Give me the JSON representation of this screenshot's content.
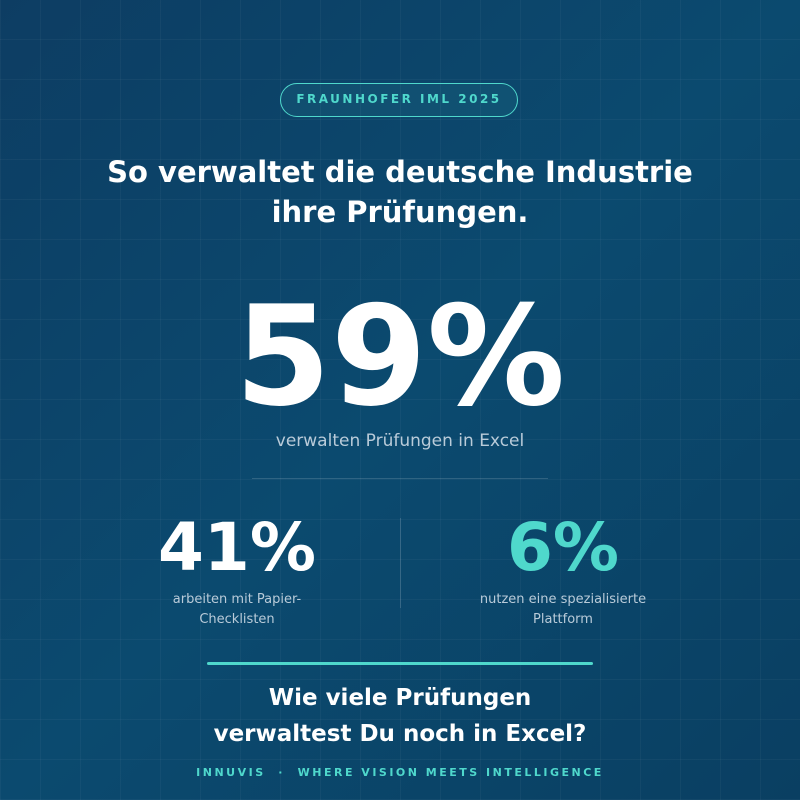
{
  "badge": "FRAUNHOFER IML 2025",
  "headline": [
    "So verwaltet die deutsche Industrie",
    "ihre Prüfungen."
  ],
  "main_stat": {
    "value": "59%",
    "caption": "verwalten Prüfungen in Excel"
  },
  "stats": [
    {
      "value": "41%",
      "caption": [
        "arbeiten mit Papier-",
        "Checklisten"
      ]
    },
    {
      "value": "6%",
      "caption": [
        "nutzen eine spezialisierte",
        "Plattform"
      ]
    }
  ],
  "question": [
    "Wie viele Prüfungen",
    "verwaltest Du noch in Excel?"
  ],
  "footer": "INNUVIS  ·  WHERE VISION MEETS INTELLIGENCE"
}
